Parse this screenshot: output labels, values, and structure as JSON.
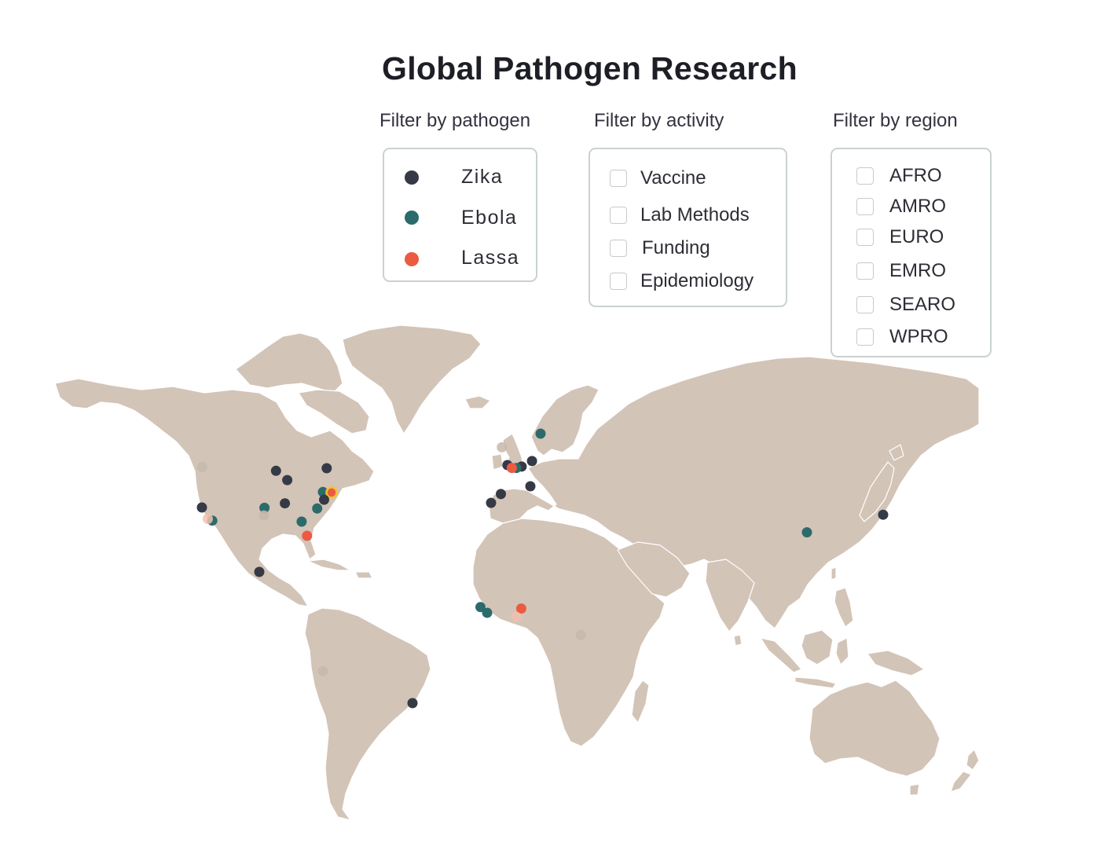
{
  "title": "Global Pathogen Research",
  "filters": {
    "pathogen": {
      "label": "Filter by pathogen",
      "items": [
        {
          "name": "Zika",
          "color": "#363a46"
        },
        {
          "name": "Ebola",
          "color": "#2c6b6b"
        },
        {
          "name": "Lassa",
          "color": "#ec5a42"
        }
      ]
    },
    "activity": {
      "label": "Filter by activity",
      "items": [
        "Vaccine",
        "Lab Methods",
        "Funding",
        "Epidemiology"
      ]
    },
    "region": {
      "label": "Filter by region",
      "items": [
        "AFRO",
        "AMRO",
        "EURO",
        "EMRO",
        "SEARO",
        "WPRO"
      ]
    }
  },
  "colors": {
    "land": "#d3c4b8",
    "border": "#ffffff",
    "ocean": "#ffffff",
    "faded_dot": "#c7b8ab",
    "faded_lassa": "#f0bfae",
    "highlight_ring": "#f2c230"
  },
  "markers": [
    {
      "location": "Washington, USA",
      "pathogen": "Zika",
      "lon": -122.3,
      "lat": 47.6,
      "faded": true
    },
    {
      "location": "San Francisco, USA",
      "pathogen": "Zika",
      "lon": -122.4,
      "lat": 37.8
    },
    {
      "location": "California, USA",
      "pathogen": "Ebola",
      "lon": -118.2,
      "lat": 34.0
    },
    {
      "location": "Los Angeles, USA",
      "pathogen": "Lassa",
      "lon": -120.0,
      "lat": 34.5,
      "faded": true
    },
    {
      "location": "Minnesota, USA",
      "pathogen": "Zika",
      "lon": -93.3,
      "lat": 44.9
    },
    {
      "location": "Wisconsin, USA",
      "pathogen": "Zika",
      "lon": -89.4,
      "lat": 43.1
    },
    {
      "location": "Ottawa, Canada",
      "pathogen": "Zika",
      "lon": -75.7,
      "lat": 45.4
    },
    {
      "location": "Kansas, USA",
      "pathogen": "Ebola",
      "lon": -97.3,
      "lat": 37.7
    },
    {
      "location": "Missouri, USA",
      "pathogen": "Zika",
      "lon": -90.2,
      "lat": 38.6
    },
    {
      "location": "Oklahoma, USA",
      "pathogen": "Zika",
      "lon": -97.5,
      "lat": 35.5,
      "faded": true
    },
    {
      "location": "Georgia, USA",
      "pathogen": "Ebola",
      "lon": -84.4,
      "lat": 33.7
    },
    {
      "location": "Florida, USA",
      "pathogen": "Lassa",
      "lon": -82.5,
      "lat": 29.6
    },
    {
      "location": "Pennsylvania, USA",
      "pathogen": "Ebola",
      "lon": -77.0,
      "lat": 40.8
    },
    {
      "location": "New York, USA",
      "pathogen": "Lassa",
      "lon": -74.0,
      "lat": 40.7,
      "highlight": true
    },
    {
      "location": "Maryland, USA",
      "pathogen": "Zika",
      "lon": -76.6,
      "lat": 39.3
    },
    {
      "location": "Virginia, USA",
      "pathogen": "Ebola",
      "lon": -79.0,
      "lat": 37.5
    },
    {
      "location": "Mexico City, Mexico",
      "pathogen": "Zika",
      "lon": -99.1,
      "lat": 19.4
    },
    {
      "location": "Lima, Peru",
      "pathogen": "Zika",
      "lon": -77.0,
      "lat": -12.0,
      "faded": true
    },
    {
      "location": "Rio de Janeiro, Brazil",
      "pathogen": "Zika",
      "lon": -43.2,
      "lat": -22.9
    },
    {
      "location": "Stockholm, Sweden",
      "pathogen": "Ebola",
      "lon": 18.1,
      "lat": 59.3
    },
    {
      "location": "Edinburgh, UK",
      "pathogen": "Ebola",
      "lon": -3.2,
      "lat": 55.9,
      "faded": true
    },
    {
      "location": "London, UK",
      "pathogen": "Zika",
      "lon": -0.1,
      "lat": 51.5
    },
    {
      "location": "Berlin, Germany",
      "pathogen": "Zika",
      "lon": 13.4,
      "lat": 52.5
    },
    {
      "location": "Strasbourg, France",
      "pathogen": "Zika",
      "lon": 7.7,
      "lat": 48.6
    },
    {
      "location": "Lyon, France",
      "pathogen": "Ebola",
      "lon": 4.8,
      "lat": 45.8
    },
    {
      "location": "Marseille, France",
      "pathogen": "Lassa",
      "lon": 2.3,
      "lat": 46.0
    },
    {
      "location": "Lisbon, Portugal",
      "pathogen": "Zika",
      "lon": -9.1,
      "lat": 38.7
    },
    {
      "location": "Madrid, Spain",
      "pathogen": "Zika",
      "lon": -3.7,
      "lat": 40.4
    },
    {
      "location": "Rome, Italy",
      "pathogen": "Zika",
      "lon": 12.5,
      "lat": 41.9
    },
    {
      "location": "Conakry, Guinea",
      "pathogen": "Ebola",
      "lon": -13.7,
      "lat": 9.5
    },
    {
      "location": "Freetown, Sierra Leone",
      "pathogen": "Ebola",
      "lon": -10.8,
      "lat": 7.9
    },
    {
      "location": "Abuja, Nigeria",
      "pathogen": "Lassa",
      "lon": 7.5,
      "lat": 9.1
    },
    {
      "location": "Lagos, Nigeria",
      "pathogen": "Lassa",
      "lon": 4.8,
      "lat": 6.5,
      "faded": true
    },
    {
      "location": "Kampala, Uganda",
      "pathogen": "Zika",
      "lon": 32.6,
      "lat": 0.3,
      "faded": true
    },
    {
      "location": "Wuhan, China",
      "pathogen": "Ebola",
      "lon": 114.3,
      "lat": 30.6
    },
    {
      "location": "Tokyo, Japan",
      "pathogen": "Zika",
      "lon": 139.7,
      "lat": 35.7
    }
  ]
}
